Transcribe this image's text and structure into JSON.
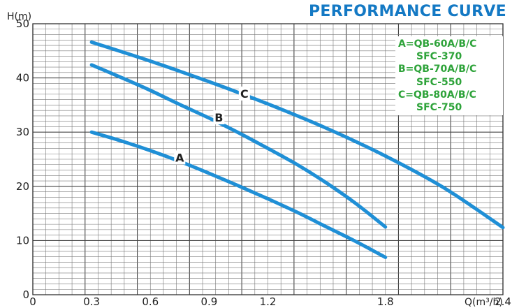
{
  "chart_data": {
    "type": "line",
    "title": "PERFORMANCE CURVE",
    "xlabel": "Q(m³/h)",
    "ylabel": "H(m)",
    "xlim": [
      0,
      2.4
    ],
    "ylim": [
      0,
      50
    ],
    "xticks": [
      "0",
      "0.3",
      "0.6",
      "0.9",
      "1.2",
      "1.8",
      "2.4"
    ],
    "xtick_values": [
      0,
      0.3,
      0.6,
      0.9,
      1.2,
      1.8,
      2.4
    ],
    "yticks": [
      "0",
      "10",
      "20",
      "30",
      "40",
      "50"
    ],
    "ytick_values": [
      0,
      10,
      20,
      30,
      40,
      50
    ],
    "grid": true,
    "legend_position": "top-right",
    "line_color": "#1f8fd6",
    "series": [
      {
        "name": "A",
        "x": [
          0.3,
          0.45,
          0.6,
          0.75,
          0.9,
          1.05,
          1.2,
          1.35,
          1.5,
          1.65,
          1.8
        ],
        "y": [
          30.0,
          28.4,
          26.6,
          24.6,
          22.4,
          20.1,
          17.7,
          15.2,
          12.5,
          9.8,
          6.9
        ]
      },
      {
        "name": "B",
        "x": [
          0.3,
          0.45,
          0.6,
          0.75,
          0.9,
          1.05,
          1.2,
          1.35,
          1.5,
          1.65,
          1.8
        ],
        "y": [
          42.4,
          40.1,
          37.7,
          35.1,
          32.6,
          29.9,
          27.0,
          24.0,
          20.6,
          16.8,
          12.5
        ]
      },
      {
        "name": "C",
        "x": [
          0.3,
          0.6,
          0.9,
          1.2,
          1.5,
          1.8,
          2.1,
          2.4
        ],
        "y": [
          46.6,
          43.1,
          39.3,
          35.2,
          30.7,
          25.6,
          19.7,
          12.4
        ]
      }
    ],
    "legend": [
      "A=QB-60A/B/C",
      "SFC-370",
      "B=QB-70A/B/C",
      "SFC-550",
      "C=QB-80A/B/C",
      "SFC-750"
    ]
  }
}
